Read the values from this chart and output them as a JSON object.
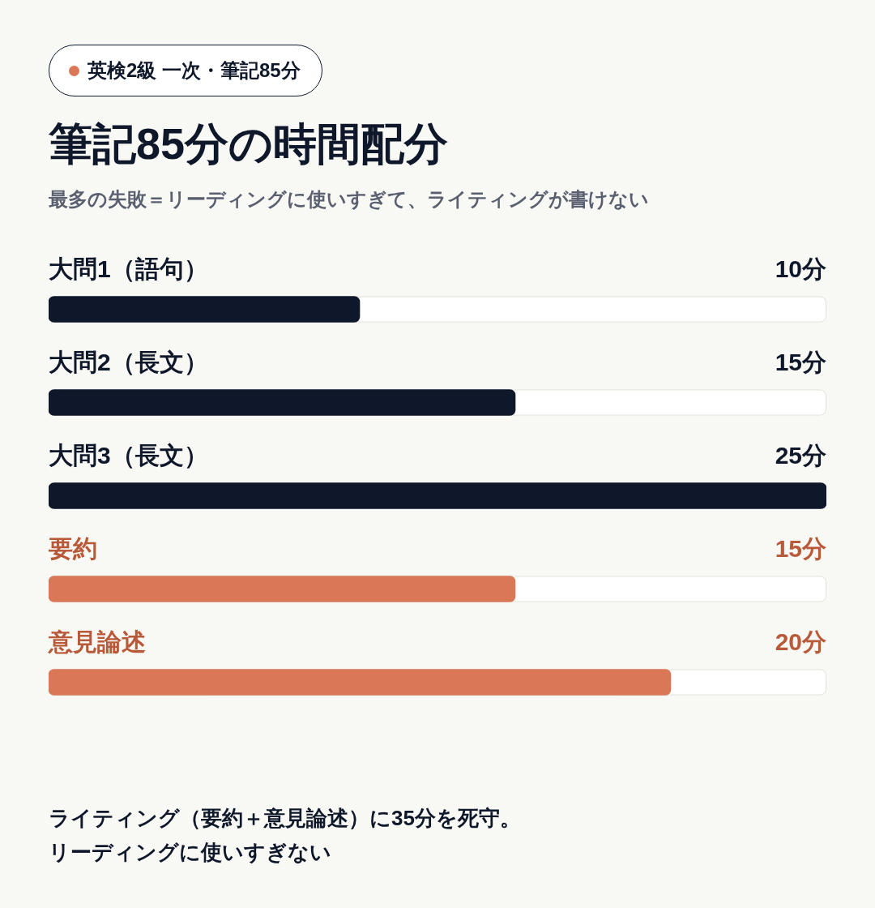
{
  "chart_data": {
    "type": "bar",
    "orientation": "horizontal",
    "title": "筆記85分の時間配分",
    "subtitle": "最多の失敗＝リーディングに使いすぎて、ライティングが書けない",
    "annotations": [
      "英検2級 一次・筆記85分",
      "ライティング（要約＋意見論述）に35分を死守。リーディングに使いすぎない"
    ],
    "categories": [
      "大問1（語句）",
      "大問2（長文）",
      "大問3（長文）",
      "要約",
      "意見論述"
    ],
    "values": [
      10,
      15,
      25,
      15,
      20
    ],
    "colors": [
      "#0f172a",
      "#0f172a",
      "#0f172a",
      "#d97757",
      "#d97757"
    ],
    "value_labels": [
      "10分",
      "15分",
      "25分",
      "15分",
      "20分"
    ],
    "legend": false
  }
}
